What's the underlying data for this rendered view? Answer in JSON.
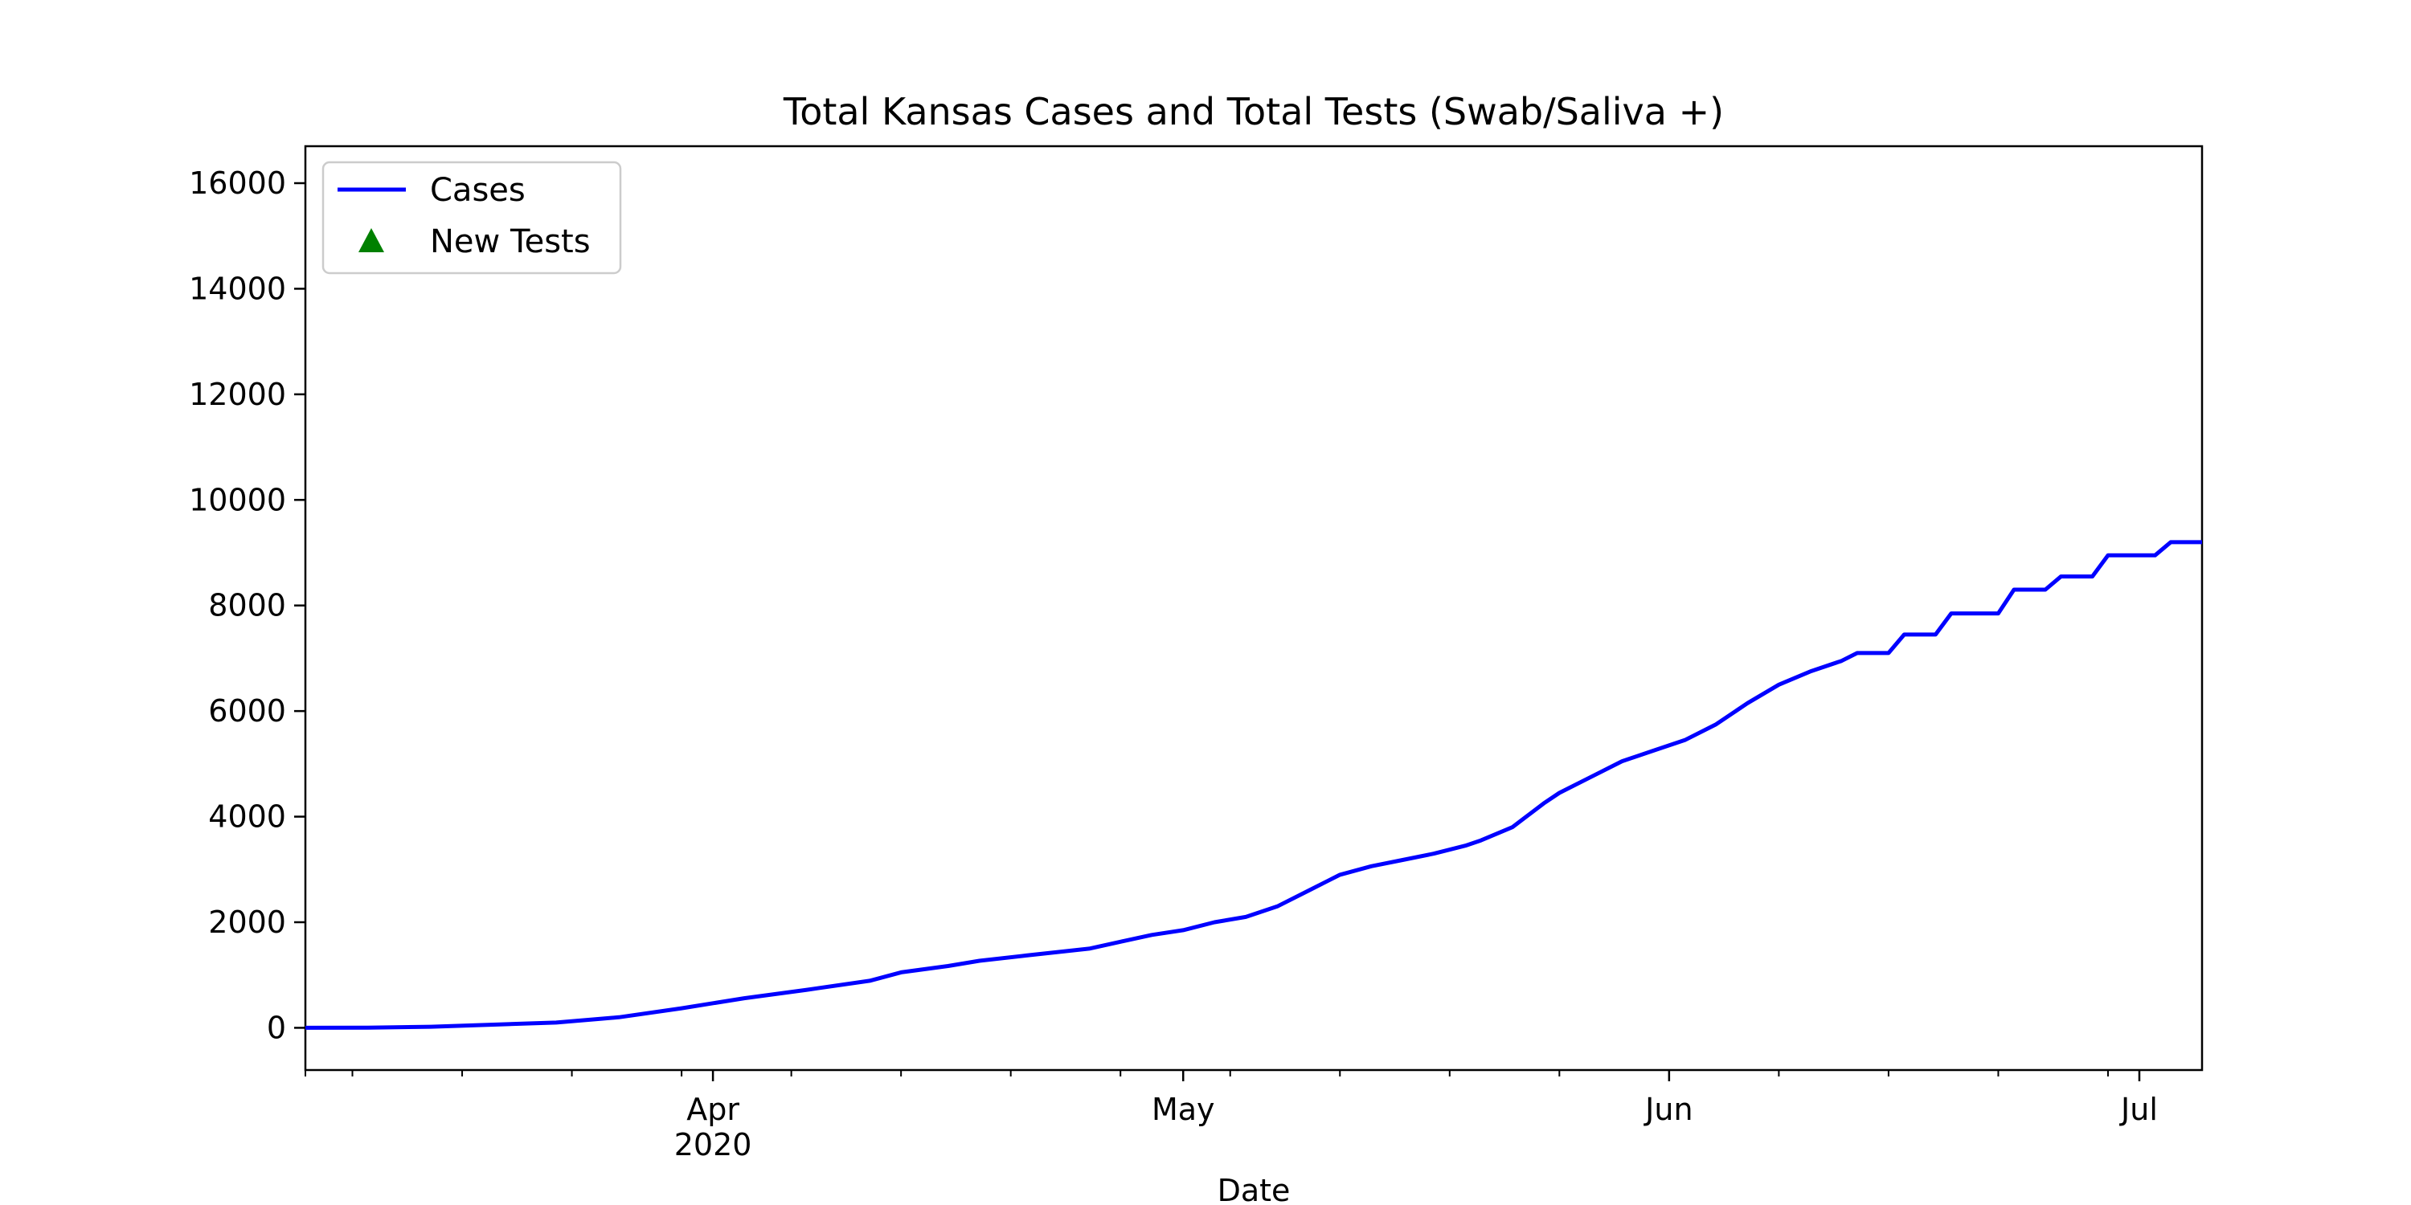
{
  "chart_data": {
    "type": "line+scatter",
    "title": "Total Kansas Cases and Total Tests (Swab/Saliva +)",
    "xlabel": "Date",
    "ylabel": "",
    "x_start": "2020-03-06",
    "x_end": "2020-07-05",
    "xlim": [
      "2020-03-06",
      "2020-07-05"
    ],
    "ylim": [
      -800,
      16700
    ],
    "yticks": [
      0,
      2000,
      4000,
      6000,
      8000,
      10000,
      12000,
      14000,
      16000
    ],
    "ytick_labels": [
      "0",
      "2000",
      "4000",
      "6000",
      "8000",
      "10000",
      "12000",
      "14000",
      "16000"
    ],
    "xticks_major": [
      {
        "date": "2020-04-01",
        "label": "Apr",
        "sublabel": "2020"
      },
      {
        "date": "2020-05-01",
        "label": "May",
        "sublabel": ""
      },
      {
        "date": "2020-06-01",
        "label": "Jun",
        "sublabel": ""
      },
      {
        "date": "2020-07-01",
        "label": "Jul",
        "sublabel": ""
      }
    ],
    "xticks_minor": [
      "2020-03-06",
      "2020-03-09",
      "2020-03-16",
      "2020-03-23",
      "2020-03-30",
      "2020-04-06",
      "2020-04-13",
      "2020-04-20",
      "2020-04-27",
      "2020-05-04",
      "2020-05-11",
      "2020-05-18",
      "2020-05-25",
      "2020-06-08",
      "2020-06-15",
      "2020-06-22",
      "2020-06-29"
    ],
    "grid": false,
    "legend": "top-left",
    "series": [
      {
        "name": "Cases",
        "kind": "line",
        "color": "#0000ff",
        "points": [
          [
            "2020-03-06",
            0
          ],
          [
            "2020-03-10",
            2
          ],
          [
            "2020-03-14",
            20
          ],
          [
            "2020-03-18",
            60
          ],
          [
            "2020-03-22",
            100
          ],
          [
            "2020-03-26",
            200
          ],
          [
            "2020-03-30",
            370
          ],
          [
            "2020-04-03",
            560
          ],
          [
            "2020-04-07",
            720
          ],
          [
            "2020-04-11",
            890
          ],
          [
            "2020-04-13",
            1050
          ],
          [
            "2020-04-16",
            1170
          ],
          [
            "2020-04-18",
            1270
          ],
          [
            "2020-04-21",
            1370
          ],
          [
            "2020-04-25",
            1500
          ],
          [
            "2020-04-27",
            1630
          ],
          [
            "2020-04-29",
            1760
          ],
          [
            "2020-05-01",
            1850
          ],
          [
            "2020-05-03",
            2000
          ],
          [
            "2020-05-05",
            2100
          ],
          [
            "2020-05-07",
            2300
          ],
          [
            "2020-05-09",
            2600
          ],
          [
            "2020-05-11",
            2900
          ],
          [
            "2020-05-13",
            3060
          ],
          [
            "2020-05-15",
            3180
          ],
          [
            "2020-05-17",
            3300
          ],
          [
            "2020-05-19",
            3450
          ],
          [
            "2020-05-20",
            3550
          ],
          [
            "2020-05-22",
            3800
          ],
          [
            "2020-05-24",
            4250
          ],
          [
            "2020-05-25",
            4450
          ],
          [
            "2020-05-27",
            4750
          ],
          [
            "2020-05-29",
            5050
          ],
          [
            "2020-05-31",
            5250
          ],
          [
            "2020-06-02",
            5450
          ],
          [
            "2020-06-04",
            5750
          ],
          [
            "2020-06-06",
            6150
          ],
          [
            "2020-06-08",
            6500
          ],
          [
            "2020-06-10",
            6750
          ],
          [
            "2020-06-12",
            6950
          ],
          [
            "2020-06-13",
            7100
          ],
          [
            "2020-06-15",
            7100
          ],
          [
            "2020-06-16",
            7450
          ],
          [
            "2020-06-18",
            7450
          ],
          [
            "2020-06-19",
            7850
          ],
          [
            "2020-06-21",
            7850
          ],
          [
            "2020-06-22",
            7850
          ],
          [
            "2020-06-23",
            8300
          ],
          [
            "2020-06-25",
            8300
          ],
          [
            "2020-06-26",
            8550
          ],
          [
            "2020-06-28",
            8550
          ],
          [
            "2020-06-29",
            8950
          ],
          [
            "2020-07-01",
            8950
          ],
          [
            "2020-07-02",
            8950
          ],
          [
            "2020-07-03",
            9200
          ],
          [
            "2020-07-05",
            9200
          ]
        ]
      },
      {
        "name": "New Tests",
        "kind": "scatter",
        "marker": "triangle",
        "color": "#008000",
        "points": []
      }
    ]
  }
}
